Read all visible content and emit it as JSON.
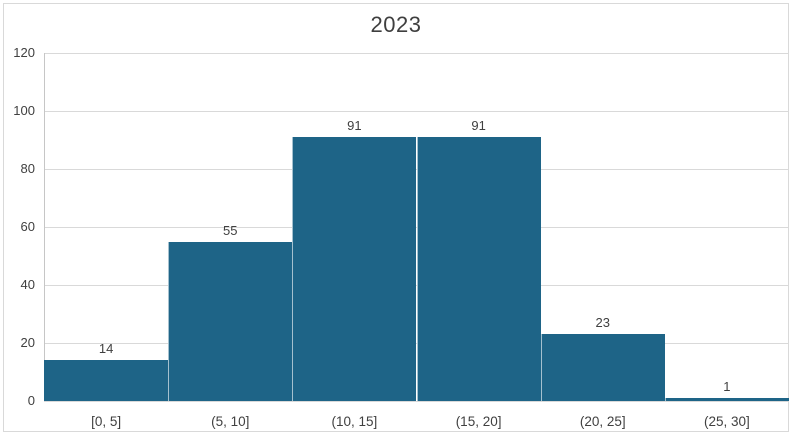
{
  "chart_data": {
    "type": "bar",
    "subtype": "histogram",
    "title": "2023",
    "categories": [
      "[0, 5]",
      "(5, 10]",
      "(10, 15]",
      "(15, 20]",
      "(20, 25]",
      "(25, 30]"
    ],
    "values": [
      14,
      55,
      91,
      91,
      23,
      1
    ],
    "data_labels_shown": true,
    "xlabel": "",
    "ylabel": "",
    "ylim": [
      0,
      120
    ],
    "yticks": [
      0,
      20,
      40,
      60,
      80,
      100,
      120
    ],
    "grid": "horizontal",
    "legend": "none",
    "bar_gap": 0
  },
  "colors": {
    "bar_fill": "#1E6487",
    "bar_divider": "rgba(255,255,255,0.6)",
    "gridline": "#D9D9D9",
    "axis_line": "#C6C6C6",
    "border": "#D9D9D9",
    "text": "#404040",
    "title_text": "#3F3F3F",
    "background": "#FFFFFF"
  }
}
